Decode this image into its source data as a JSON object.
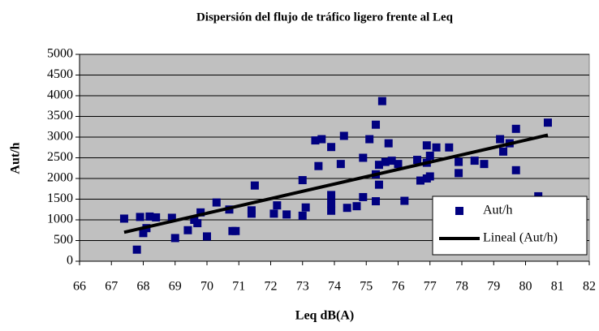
{
  "chart_data": {
    "type": "scatter",
    "title": "Dispersión del flujo de tráfico ligero frente al Leq",
    "x_label": "Leq dB(A)",
    "y_label": "Aut/h",
    "xlim": [
      66,
      82
    ],
    "xticks": [
      66,
      67,
      68,
      69,
      70,
      71,
      72,
      73,
      74,
      75,
      76,
      77,
      78,
      79,
      80,
      81,
      82
    ],
    "ylim": [
      0,
      5000
    ],
    "yticks": [
      0,
      500,
      1000,
      1500,
      2000,
      2500,
      3000,
      3500,
      4000,
      4500,
      5000
    ],
    "grid": true,
    "legend": "lower-right",
    "series": [
      {
        "name": "Aut/h",
        "color": "#000080",
        "marker": "square",
        "x": [
          67.4,
          67.8,
          67.9,
          68.0,
          68.1,
          68.2,
          68.4,
          68.9,
          69.0,
          69.4,
          69.6,
          69.7,
          69.8,
          70.0,
          70.3,
          70.7,
          70.8,
          70.9,
          71.4,
          71.4,
          71.5,
          72.1,
          72.2,
          72.5,
          73.0,
          73.0,
          73.1,
          73.4,
          73.5,
          73.6,
          73.9,
          73.9,
          73.9,
          73.9,
          74.2,
          74.3,
          74.4,
          74.7,
          74.9,
          74.9,
          75.1,
          75.3,
          75.3,
          75.3,
          75.4,
          75.4,
          75.5,
          75.6,
          75.7,
          75.8,
          76.0,
          76.2,
          76.6,
          76.7,
          76.9,
          76.9,
          76.9,
          77.0,
          77.0,
          77.2,
          77.6,
          77.9,
          77.9,
          78.4,
          78.7,
          79.2,
          79.3,
          79.5,
          79.7,
          79.7,
          80.4,
          80.7
        ],
        "values": [
          1030,
          280,
          1070,
          680,
          800,
          1080,
          1060,
          1050,
          560,
          750,
          1000,
          920,
          1180,
          600,
          1420,
          1250,
          730,
          730,
          1150,
          1230,
          1830,
          1150,
          1350,
          1130,
          1100,
          1960,
          1300,
          2920,
          2300,
          2950,
          2760,
          1600,
          1400,
          1220,
          2350,
          3030,
          1290,
          1330,
          2500,
          1550,
          2950,
          3300,
          2100,
          1450,
          2330,
          1850,
          3870,
          2400,
          2850,
          2430,
          2350,
          1460,
          2450,
          1950,
          2800,
          2380,
          2000,
          2550,
          2050,
          2750,
          2750,
          2400,
          2130,
          2430,
          2350,
          2950,
          2650,
          2850,
          3200,
          2200,
          1570,
          3350
        ]
      },
      {
        "name": "Lineal (Aut/h)",
        "color": "#000000",
        "marker": "line",
        "x": [
          67.4,
          80.7
        ],
        "values": [
          700,
          3050
        ]
      }
    ]
  }
}
